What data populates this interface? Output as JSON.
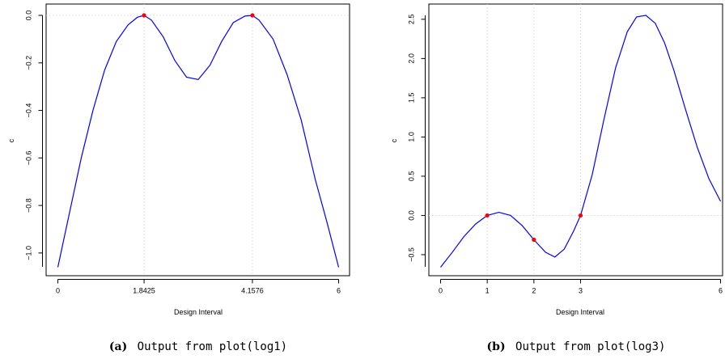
{
  "chart_data": [
    {
      "type": "line",
      "panel_label": "(a)",
      "caption": "Output from plot(log1)",
      "xlabel": "Design Interval",
      "ylabel": "c",
      "xlim": [
        0,
        6
      ],
      "ylim": [
        -1.06,
        0.0
      ],
      "x_ticks": [
        0,
        1.8425,
        4.1576,
        6
      ],
      "x_tick_labels": [
        "0",
        "1.8425",
        "4.1576",
        "6"
      ],
      "y_ticks": [
        0.0,
        -0.2,
        -0.4,
        -0.6,
        -0.8,
        -1.0
      ],
      "y_tick_labels": [
        "0.0",
        "−0.2",
        "−0.4",
        "−0.6",
        "−0.8",
        "−1.0"
      ],
      "grid_x": [
        1.8425,
        4.1576
      ],
      "grid_y": [
        0.0
      ],
      "line_color": "#0000ff",
      "point_color": "#ff0000",
      "series": [
        {
          "x": [
            0,
            0.25,
            0.5,
            0.75,
            1.0,
            1.25,
            1.5,
            1.7,
            1.8425,
            2.0,
            2.25,
            2.5,
            2.75,
            3.0,
            3.25,
            3.5,
            3.75,
            4.0,
            4.1576,
            4.3,
            4.6,
            4.9,
            5.2,
            5.5,
            5.75,
            6.0
          ],
          "y": [
            -1.06,
            -0.83,
            -0.6,
            -0.4,
            -0.23,
            -0.11,
            -0.04,
            -0.008,
            0.0,
            -0.02,
            -0.09,
            -0.19,
            -0.26,
            -0.27,
            -0.21,
            -0.11,
            -0.03,
            -0.003,
            0.0,
            -0.02,
            -0.1,
            -0.25,
            -0.44,
            -0.69,
            -0.87,
            -1.06
          ]
        }
      ],
      "points": [
        {
          "x": 1.8425,
          "y": 0.0
        },
        {
          "x": 4.1576,
          "y": 0.0
        }
      ]
    },
    {
      "type": "line",
      "panel_label": "(b)",
      "caption": "Output from plot(log3)",
      "xlabel": "Design Interval",
      "ylabel": "c",
      "xlim": [
        0,
        6
      ],
      "ylim": [
        -0.66,
        2.55
      ],
      "x_ticks": [
        0,
        1,
        2,
        3,
        6
      ],
      "x_tick_labels": [
        "0",
        "1",
        "2",
        "3",
        "6"
      ],
      "y_ticks": [
        -0.5,
        0.0,
        0.5,
        1.0,
        1.5,
        2.0,
        2.5
      ],
      "y_tick_labels": [
        "−0.5",
        "0.0",
        "0.5",
        "1.0",
        "1.5",
        "2.0",
        "2.5"
      ],
      "grid_x": [
        1,
        2,
        3
      ],
      "grid_y": [
        0.0
      ],
      "line_color": "#0000ff",
      "point_color": "#ff0000",
      "series": [
        {
          "x": [
            0,
            0.25,
            0.5,
            0.75,
            1.0,
            1.25,
            1.5,
            1.75,
            2.0,
            2.25,
            2.45,
            2.65,
            2.85,
            3.0,
            3.25,
            3.5,
            3.75,
            4.0,
            4.2,
            4.4,
            4.6,
            4.8,
            5.0,
            5.25,
            5.5,
            5.75,
            6.0
          ],
          "y": [
            -0.66,
            -0.47,
            -0.27,
            -0.11,
            0.0,
            0.04,
            0.0,
            -0.13,
            -0.31,
            -0.47,
            -0.53,
            -0.43,
            -0.2,
            0.0,
            0.52,
            1.22,
            1.88,
            2.34,
            2.53,
            2.55,
            2.45,
            2.2,
            1.85,
            1.35,
            0.87,
            0.47,
            0.18
          ]
        }
      ],
      "points": [
        {
          "x": 1.0,
          "y": 0.0
        },
        {
          "x": 2.0,
          "y": -0.31
        },
        {
          "x": 3.0,
          "y": 0.0
        }
      ]
    }
  ]
}
